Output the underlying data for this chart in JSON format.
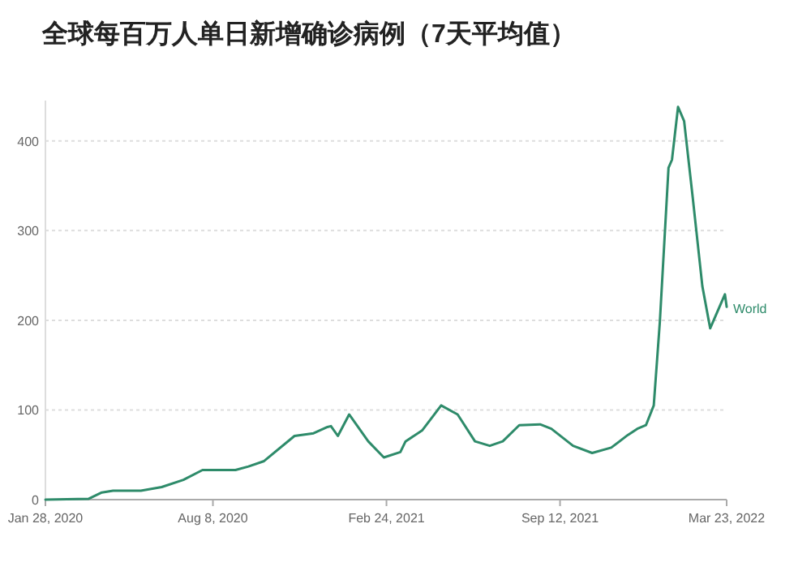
{
  "chart_data": {
    "type": "line",
    "title": "全球每百万人单日新增确诊病例（7天平均值）",
    "x": [
      "2020-01-28",
      "2020-03-18",
      "2020-04-02",
      "2020-04-15",
      "2020-05-17",
      "2020-06-10",
      "2020-07-05",
      "2020-07-27",
      "2020-09-03",
      "2020-09-18",
      "2020-10-06",
      "2020-11-10",
      "2020-12-02",
      "2020-12-18",
      "2020-12-22",
      "2020-12-30",
      "2021-01-12",
      "2021-02-03",
      "2021-02-21",
      "2021-03-12",
      "2021-03-18",
      "2021-04-06",
      "2021-04-28",
      "2021-05-17",
      "2021-06-06",
      "2021-06-23",
      "2021-07-08",
      "2021-07-27",
      "2021-08-20",
      "2021-09-02",
      "2021-09-27",
      "2021-10-19",
      "2021-11-10",
      "2021-11-29",
      "2021-12-10",
      "2021-12-20",
      "2021-12-29",
      "2022-01-05",
      "2022-01-15",
      "2022-01-19",
      "2022-01-26",
      "2022-02-02",
      "2022-02-12",
      "2022-02-23",
      "2022-03-04",
      "2022-03-21",
      "2022-03-23"
    ],
    "series": [
      {
        "name": "World",
        "color": "#2e8b6a",
        "values": [
          0,
          1,
          8,
          10,
          10,
          14,
          22,
          33,
          33,
          37,
          43,
          71,
          74,
          81,
          82,
          71,
          95,
          65,
          47,
          53,
          65,
          77,
          105,
          95,
          65,
          60,
          65,
          83,
          84,
          79,
          60,
          52,
          58,
          72,
          79,
          83,
          105,
          198,
          370,
          379,
          438,
          422,
          336,
          238,
          191,
          229,
          215
        ]
      }
    ],
    "xlim": [
      "2020-01-28",
      "2022-03-23"
    ],
    "xticks": [
      {
        "value": "2020-01-28",
        "label": "Jan 28, 2020"
      },
      {
        "value": "2020-08-08",
        "label": "Aug 8, 2020"
      },
      {
        "value": "2021-02-24",
        "label": "Feb 24, 2021"
      },
      {
        "value": "2021-09-12",
        "label": "Sep 12, 2021"
      },
      {
        "value": "2022-03-23",
        "label": "Mar 23, 2022"
      }
    ],
    "ylim": [
      0,
      445
    ],
    "yticks": [
      0,
      100,
      200,
      300,
      400
    ],
    "grid": "y",
    "line_style": "solid",
    "marker": "none"
  }
}
